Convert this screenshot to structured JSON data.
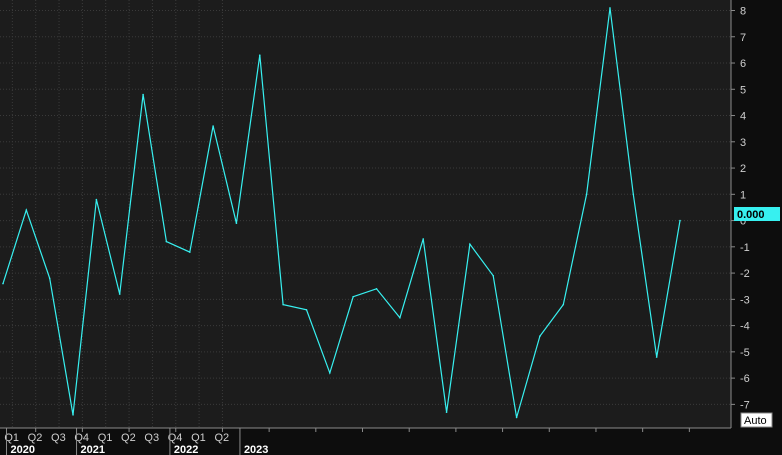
{
  "chart_data": {
    "type": "line",
    "line_color": "#37f0f0",
    "background_color": "#1c1c1c",
    "grid": true,
    "ylim": [
      -7.9,
      8.4
    ],
    "y_ticks": [
      -7,
      -6,
      -5,
      -4,
      -3,
      -2,
      -1,
      0,
      1,
      2,
      3,
      4,
      5,
      6,
      7,
      8
    ],
    "last_value_label": "0.000",
    "scale_button": "Auto",
    "quarter_labels": [
      {
        "label": "Q1",
        "x": "2020-Q1"
      },
      {
        "label": "Q2",
        "x": "2020-Q2"
      },
      {
        "label": "Q3",
        "x": "2020-Q3"
      },
      {
        "label": "Q4",
        "x": "2020-Q4"
      },
      {
        "label": "Q1",
        "x": "2021-Q1"
      },
      {
        "label": "Q2",
        "x": "2021-Q2"
      },
      {
        "label": "Q3",
        "x": "2021-Q3"
      },
      {
        "label": "Q4",
        "x": "2021-Q4"
      },
      {
        "label": "Q1",
        "x": "2022-Q1"
      },
      {
        "label": "Q2",
        "x": "2022-Q2"
      }
    ],
    "year_labels": [
      {
        "label": "2020",
        "x": "2019-Q4"
      },
      {
        "label": "2021",
        "x": "2020-Q3"
      },
      {
        "label": "2022",
        "x": "2021-Q3"
      },
      {
        "label": "2023",
        "x": "2022-Q2"
      }
    ],
    "series": [
      {
        "values": [
          -2.4,
          0.4,
          -2.2,
          -7.4,
          0.8,
          -2.8,
          4.8,
          -0.8,
          -1.2,
          3.6,
          -0.1,
          6.3,
          -3.2,
          -3.4,
          -5.8,
          -2.9,
          -2.6,
          -3.7,
          -0.7,
          -7.3,
          -0.9,
          -2.1,
          -7.5,
          -4.4,
          -3.2,
          1.0,
          8.1,
          1.0,
          -5.2,
          0.0
        ]
      }
    ]
  }
}
